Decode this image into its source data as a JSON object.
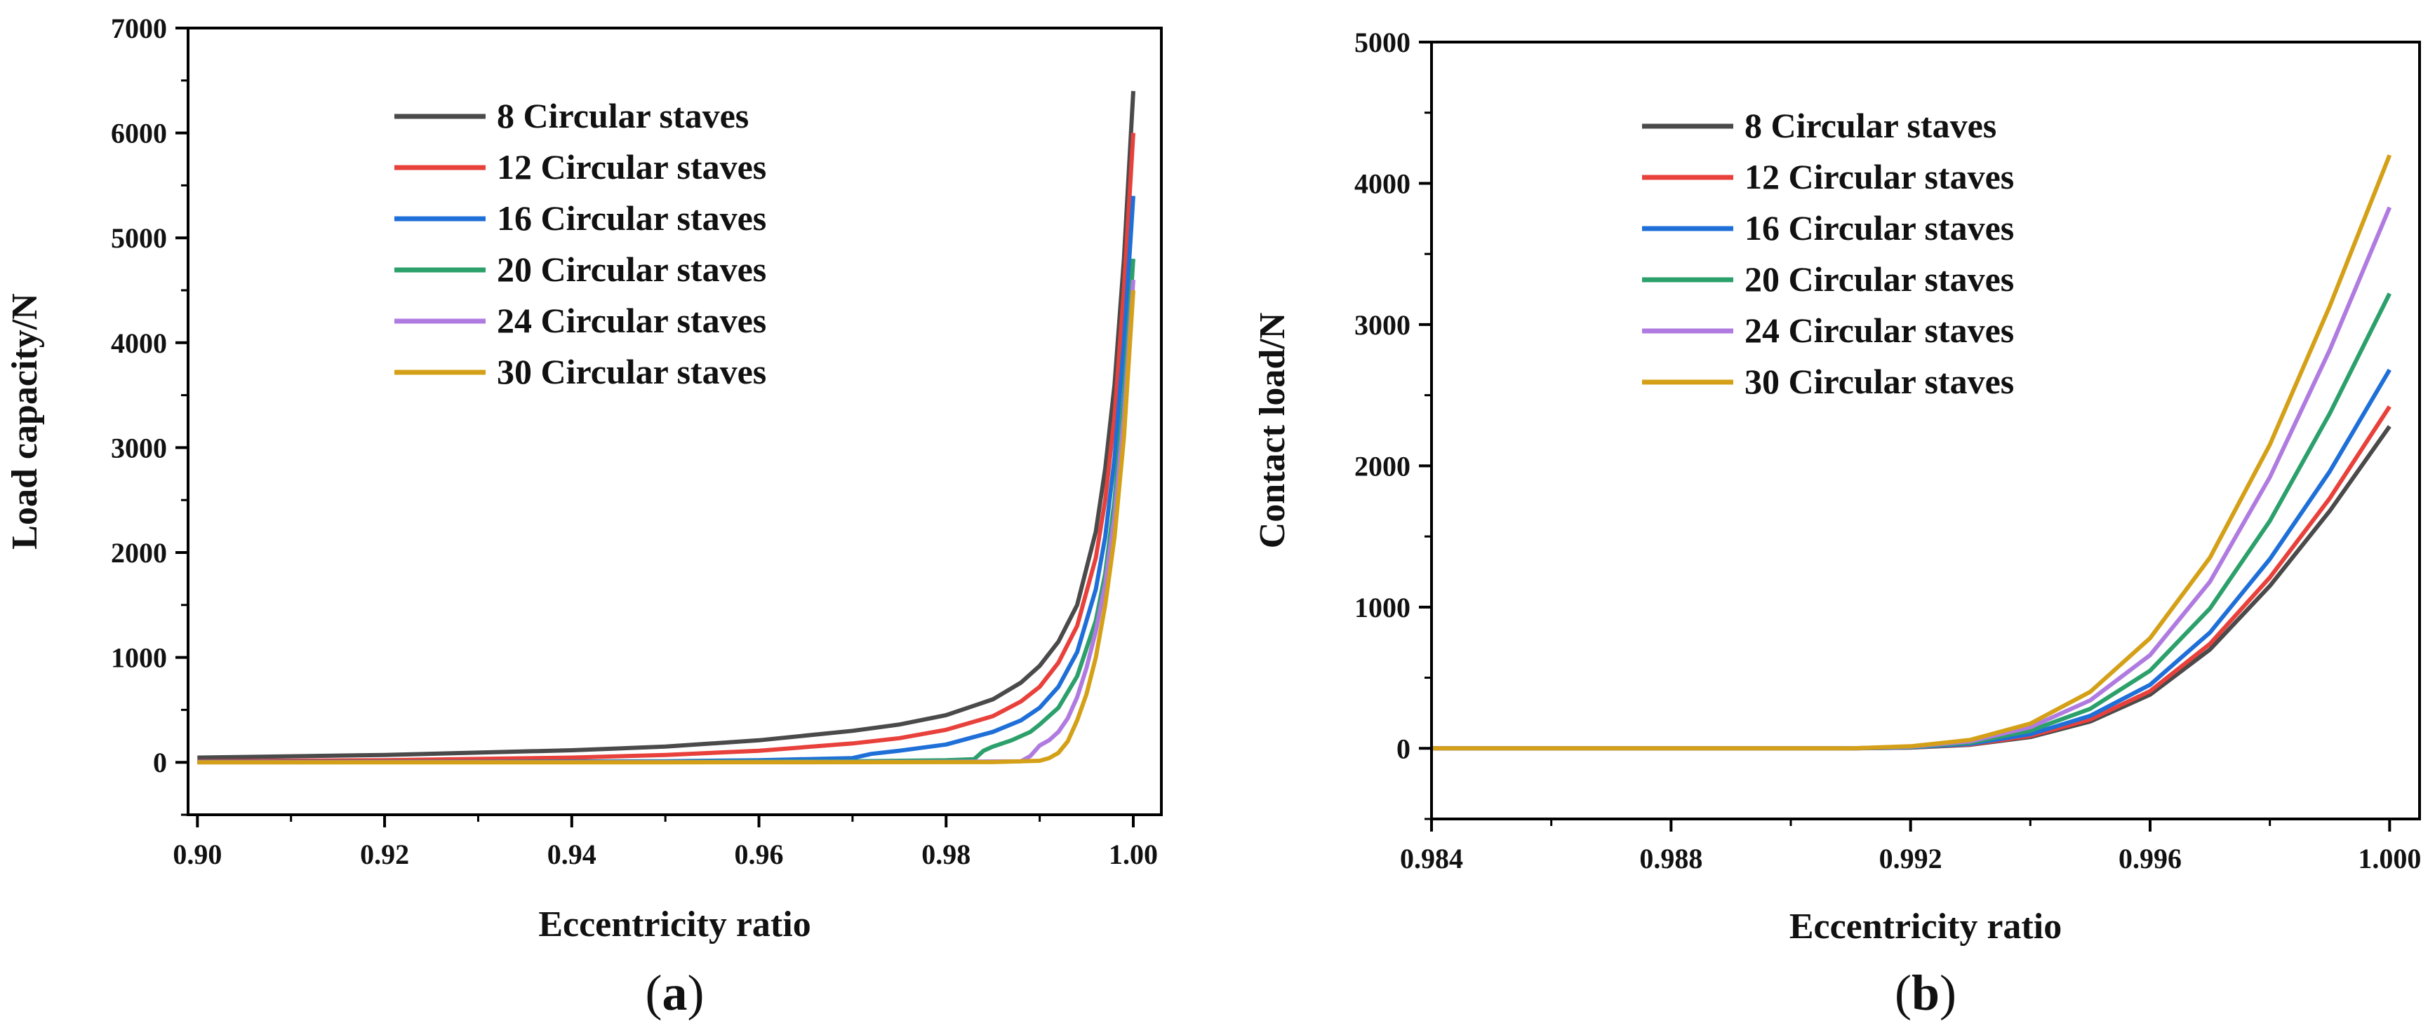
{
  "chart_data": [
    {
      "type": "line",
      "panel": "(a)",
      "panel_parts": {
        "open": "(",
        "letter": "a",
        "close": ")"
      },
      "xlabel": "Eccentricity ratio",
      "ylabel": "Load capacity/N",
      "xlim": [
        0.899,
        1.003
      ],
      "ylim": [
        -500,
        7000
      ],
      "xticks": [
        0.9,
        0.92,
        0.94,
        0.96,
        0.98,
        1.0
      ],
      "xtick_labels": [
        "0.90",
        "0.92",
        "0.94",
        "0.96",
        "0.98",
        "1.00"
      ],
      "yticks": [
        0,
        1000,
        2000,
        3000,
        4000,
        5000,
        6000,
        7000
      ],
      "ytick_labels": [
        "0",
        "1000",
        "2000",
        "3000",
        "4000",
        "5000",
        "6000",
        "7000"
      ],
      "legend_position": "top-center",
      "series": [
        {
          "name": "8 Circular staves",
          "color": "#4a4a4a",
          "points": [
            [
              0.9,
              45
            ],
            [
              0.92,
              70
            ],
            [
              0.94,
              115
            ],
            [
              0.95,
              150
            ],
            [
              0.96,
              210
            ],
            [
              0.97,
              300
            ],
            [
              0.975,
              360
            ],
            [
              0.98,
              450
            ],
            [
              0.985,
              600
            ],
            [
              0.988,
              760
            ],
            [
              0.99,
              920
            ],
            [
              0.992,
              1150
            ],
            [
              0.994,
              1500
            ],
            [
              0.996,
              2200
            ],
            [
              0.997,
              2800
            ],
            [
              0.998,
              3600
            ],
            [
              0.999,
              4800
            ],
            [
              1.0,
              6400
            ]
          ]
        },
        {
          "name": "12 Circular staves",
          "color": "#e8413c",
          "points": [
            [
              0.9,
              10
            ],
            [
              0.92,
              20
            ],
            [
              0.94,
              45
            ],
            [
              0.95,
              70
            ],
            [
              0.96,
              110
            ],
            [
              0.97,
              180
            ],
            [
              0.975,
              230
            ],
            [
              0.98,
              310
            ],
            [
              0.985,
              440
            ],
            [
              0.988,
              580
            ],
            [
              0.99,
              720
            ],
            [
              0.992,
              950
            ],
            [
              0.994,
              1300
            ],
            [
              0.996,
              1950
            ],
            [
              0.997,
              2500
            ],
            [
              0.998,
              3300
            ],
            [
              0.999,
              4500
            ],
            [
              1.0,
              6000
            ]
          ]
        },
        {
          "name": "16 Circular staves",
          "color": "#1f6fd8",
          "points": [
            [
              0.9,
              5
            ],
            [
              0.93,
              5
            ],
            [
              0.95,
              10
            ],
            [
              0.96,
              20
            ],
            [
              0.965,
              30
            ],
            [
              0.97,
              40
            ],
            [
              0.972,
              80
            ],
            [
              0.975,
              110
            ],
            [
              0.98,
              170
            ],
            [
              0.985,
              290
            ],
            [
              0.988,
              400
            ],
            [
              0.99,
              520
            ],
            [
              0.992,
              720
            ],
            [
              0.994,
              1050
            ],
            [
              0.996,
              1650
            ],
            [
              0.997,
              2150
            ],
            [
              0.998,
              2900
            ],
            [
              0.999,
              4000
            ],
            [
              1.0,
              5400
            ]
          ]
        },
        {
          "name": "20 Circular staves",
          "color": "#2ca06b",
          "points": [
            [
              0.9,
              2
            ],
            [
              0.95,
              5
            ],
            [
              0.97,
              10
            ],
            [
              0.98,
              20
            ],
            [
              0.983,
              30
            ],
            [
              0.984,
              110
            ],
            [
              0.985,
              150
            ],
            [
              0.987,
              210
            ],
            [
              0.989,
              290
            ],
            [
              0.99,
              360
            ],
            [
              0.992,
              520
            ],
            [
              0.994,
              820
            ],
            [
              0.996,
              1350
            ],
            [
              0.997,
              1800
            ],
            [
              0.998,
              2500
            ],
            [
              0.999,
              3500
            ],
            [
              1.0,
              4800
            ]
          ]
        },
        {
          "name": "24 Circular staves",
          "color": "#b07be0",
          "points": [
            [
              0.9,
              1
            ],
            [
              0.95,
              2
            ],
            [
              0.98,
              5
            ],
            [
              0.988,
              10
            ],
            [
              0.989,
              60
            ],
            [
              0.99,
              160
            ],
            [
              0.991,
              210
            ],
            [
              0.992,
              290
            ],
            [
              0.993,
              420
            ],
            [
              0.994,
              620
            ],
            [
              0.995,
              900
            ],
            [
              0.996,
              1250
            ],
            [
              0.997,
              1700
            ],
            [
              0.998,
              2350
            ],
            [
              0.999,
              3300
            ],
            [
              1.0,
              4600
            ]
          ]
        },
        {
          "name": "30 Circular staves",
          "color": "#d4a017",
          "points": [
            [
              0.9,
              0
            ],
            [
              0.95,
              0
            ],
            [
              0.985,
              2
            ],
            [
              0.99,
              15
            ],
            [
              0.991,
              40
            ],
            [
              0.992,
              90
            ],
            [
              0.993,
              200
            ],
            [
              0.994,
              400
            ],
            [
              0.995,
              650
            ],
            [
              0.996,
              1000
            ],
            [
              0.997,
              1500
            ],
            [
              0.998,
              2150
            ],
            [
              0.999,
              3100
            ],
            [
              1.0,
              4500
            ]
          ]
        }
      ]
    },
    {
      "type": "line",
      "panel": "(b)",
      "panel_parts": {
        "open": "(",
        "letter": "b",
        "close": ")"
      },
      "xlabel": "Eccentricity ratio",
      "ylabel": "Contact load/N",
      "xlim": [
        0.984,
        1.0005
      ],
      "ylim": [
        -500,
        5000
      ],
      "xticks": [
        0.984,
        0.988,
        0.992,
        0.996,
        1.0
      ],
      "xtick_labels": [
        "0.984",
        "0.988",
        "0.992",
        "0.996",
        "1.000"
      ],
      "yticks": [
        0,
        1000,
        2000,
        3000,
        4000,
        5000
      ],
      "ytick_labels": [
        "0",
        "1000",
        "2000",
        "3000",
        "4000",
        "5000"
      ],
      "legend_position": "top-center",
      "series": [
        {
          "name": "8 Circular staves",
          "color": "#4a4a4a",
          "points": [
            [
              0.984,
              0
            ],
            [
              0.991,
              0
            ],
            [
              0.992,
              5
            ],
            [
              0.993,
              25
            ],
            [
              0.994,
              80
            ],
            [
              0.995,
              190
            ],
            [
              0.996,
              380
            ],
            [
              0.997,
              700
            ],
            [
              0.998,
              1150
            ],
            [
              0.999,
              1680
            ],
            [
              1.0,
              2280
            ]
          ]
        },
        {
          "name": "12 Circular staves",
          "color": "#e8413c",
          "points": [
            [
              0.984,
              0
            ],
            [
              0.991,
              0
            ],
            [
              0.992,
              6
            ],
            [
              0.993,
              28
            ],
            [
              0.994,
              88
            ],
            [
              0.995,
              205
            ],
            [
              0.996,
              405
            ],
            [
              0.997,
              740
            ],
            [
              0.998,
              1210
            ],
            [
              0.999,
              1770
            ],
            [
              1.0,
              2420
            ]
          ]
        },
        {
          "name": "16 Circular staves",
          "color": "#1f6fd8",
          "points": [
            [
              0.984,
              0
            ],
            [
              0.991,
              0
            ],
            [
              0.992,
              7
            ],
            [
              0.993,
              32
            ],
            [
              0.994,
              100
            ],
            [
              0.995,
              230
            ],
            [
              0.996,
              450
            ],
            [
              0.997,
              820
            ],
            [
              0.998,
              1340
            ],
            [
              0.999,
              1960
            ],
            [
              1.0,
              2680
            ]
          ]
        },
        {
          "name": "20 Circular staves",
          "color": "#2ca06b",
          "points": [
            [
              0.984,
              0
            ],
            [
              0.991,
              0
            ],
            [
              0.992,
              9
            ],
            [
              0.993,
              40
            ],
            [
              0.994,
              125
            ],
            [
              0.995,
              280
            ],
            [
              0.996,
              550
            ],
            [
              0.997,
              990
            ],
            [
              0.998,
              1610
            ],
            [
              0.999,
              2370
            ],
            [
              1.0,
              3220
            ]
          ]
        },
        {
          "name": "24 Circular staves",
          "color": "#b07be0",
          "points": [
            [
              0.984,
              0
            ],
            [
              0.991,
              0
            ],
            [
              0.992,
              12
            ],
            [
              0.993,
              50
            ],
            [
              0.994,
              150
            ],
            [
              0.995,
              340
            ],
            [
              0.996,
              660
            ],
            [
              0.997,
              1180
            ],
            [
              0.998,
              1920
            ],
            [
              0.999,
              2820
            ],
            [
              1.0,
              3830
            ]
          ]
        },
        {
          "name": "30 Circular staves",
          "color": "#d4a017",
          "points": [
            [
              0.984,
              0
            ],
            [
              0.991,
              0
            ],
            [
              0.992,
              15
            ],
            [
              0.993,
              60
            ],
            [
              0.994,
              175
            ],
            [
              0.995,
              400
            ],
            [
              0.996,
              780
            ],
            [
              0.997,
              1350
            ],
            [
              0.998,
              2150
            ],
            [
              0.999,
              3130
            ],
            [
              1.0,
              4200
            ]
          ]
        }
      ]
    }
  ]
}
